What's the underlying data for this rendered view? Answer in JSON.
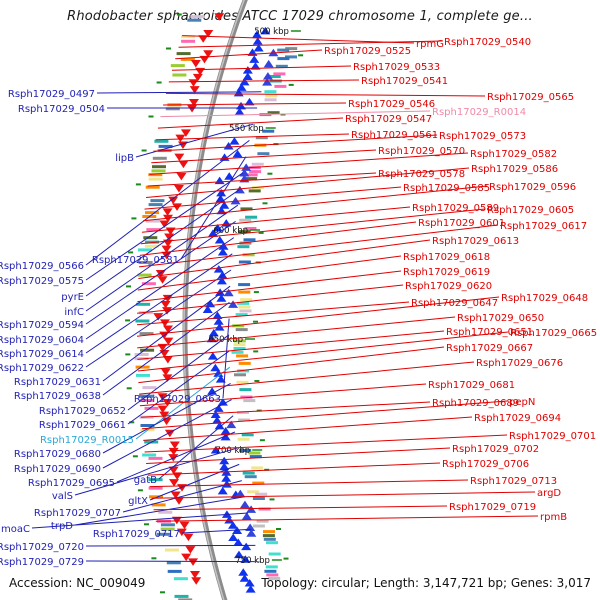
{
  "title": "Rhodobacter sphaeroides ATCC 17029 chromosome 1, complete ge...",
  "footer": {
    "accession": "Accession: NC_009049",
    "topology": "Topology: circular; Length: 3,147,721 bp; Genes: 3,017"
  },
  "colors": {
    "left_label": "#1f1fb4",
    "right_label": "#e00000",
    "rna_left": "#2aa8d8",
    "rna_right": "#f08aa8",
    "backbone": "#8c8c8c",
    "forward_strand": "#1133ee",
    "reverse_strand": "#ee1111",
    "tick": "#1a8a1a"
  },
  "ruler": [
    {
      "label": "500 kbp"
    },
    {
      "label": "550 kbp"
    },
    {
      "label": "600 kbp"
    },
    {
      "label": "650 kbp"
    },
    {
      "label": "700 kbp"
    },
    {
      "label": "750 kbp"
    }
  ],
  "left_labels": [
    {
      "text": "Rsph17029_0497"
    },
    {
      "text": "Rsph17029_0504"
    },
    {
      "text": "lipB"
    },
    {
      "text": "Rsph17029_0566"
    },
    {
      "text": "Rsph17029_0581"
    },
    {
      "text": "Rsph17029_0575"
    },
    {
      "text": "pyrE"
    },
    {
      "text": "infC"
    },
    {
      "text": "Rsph17029_0594"
    },
    {
      "text": "Rsph17029_0604"
    },
    {
      "text": "Rsph17029_0614"
    },
    {
      "text": "Rsph17029_0622"
    },
    {
      "text": "Rsph17029_0631"
    },
    {
      "text": "Rsph17029_0638"
    },
    {
      "text": "Rsph17029_0663"
    },
    {
      "text": "Rsph17029_0652"
    },
    {
      "text": "Rsph17029_0661"
    },
    {
      "text": "Rsph17029_R0015",
      "type": "rna"
    },
    {
      "text": "Rsph17029_0680"
    },
    {
      "text": "Rsph17029_0690"
    },
    {
      "text": "gatB"
    },
    {
      "text": "Rsph17029_0695"
    },
    {
      "text": "valS"
    },
    {
      "text": "gltX"
    },
    {
      "text": "Rsph17029_0707"
    },
    {
      "text": "trpD"
    },
    {
      "text": "moaC"
    },
    {
      "text": "Rsph17029_0717"
    },
    {
      "text": "Rsph17029_0720"
    },
    {
      "text": "Rsph17029_0729"
    }
  ],
  "right_labels": [
    {
      "text": "rpmG"
    },
    {
      "text": "Rsph17029_0540"
    },
    {
      "text": "Rsph17029_0525"
    },
    {
      "text": "Rsph17029_0533"
    },
    {
      "text": "Rsph17029_0541"
    },
    {
      "text": "Rsph17029_0565"
    },
    {
      "text": "Rsph17029_0546"
    },
    {
      "text": "Rsph17029_R0014",
      "type": "rna"
    },
    {
      "text": "Rsph17029_0547"
    },
    {
      "text": "Rsph17029_0561"
    },
    {
      "text": "Rsph17029_0573"
    },
    {
      "text": "Rsph17029_0570"
    },
    {
      "text": "Rsph17029_0582"
    },
    {
      "text": "Rsph17029_0578"
    },
    {
      "text": "Rsph17029_0586"
    },
    {
      "text": "Rsph17029_0585"
    },
    {
      "text": "Rsph17029_0596"
    },
    {
      "text": "Rsph17029_0589"
    },
    {
      "text": "Rsph17029_0605"
    },
    {
      "text": "Rsph17029_0601"
    },
    {
      "text": "Rsph17029_0617"
    },
    {
      "text": "Rsph17029_0613"
    },
    {
      "text": "Rsph17029_0618"
    },
    {
      "text": "Rsph17029_0619"
    },
    {
      "text": "Rsph17029_0620"
    },
    {
      "text": "Rsph17029_0647"
    },
    {
      "text": "Rsph17029_0648"
    },
    {
      "text": "Rsph17029_0650"
    },
    {
      "text": "Rsph17029_0651"
    },
    {
      "text": "Rsph17029_0665"
    },
    {
      "text": "Rsph17029_0667"
    },
    {
      "text": "Rsph17029_0676"
    },
    {
      "text": "Rsph17029_0681"
    },
    {
      "text": "Rsph17029_0689"
    },
    {
      "text": "pepN"
    },
    {
      "text": "Rsph17029_0694"
    },
    {
      "text": "Rsph17029_0701"
    },
    {
      "text": "Rsph17029_0702"
    },
    {
      "text": "Rsph17029_0706"
    },
    {
      "text": "Rsph17029_0713"
    },
    {
      "text": "argD"
    },
    {
      "text": "Rsph17029_0719"
    },
    {
      "text": "rpmB"
    }
  ]
}
